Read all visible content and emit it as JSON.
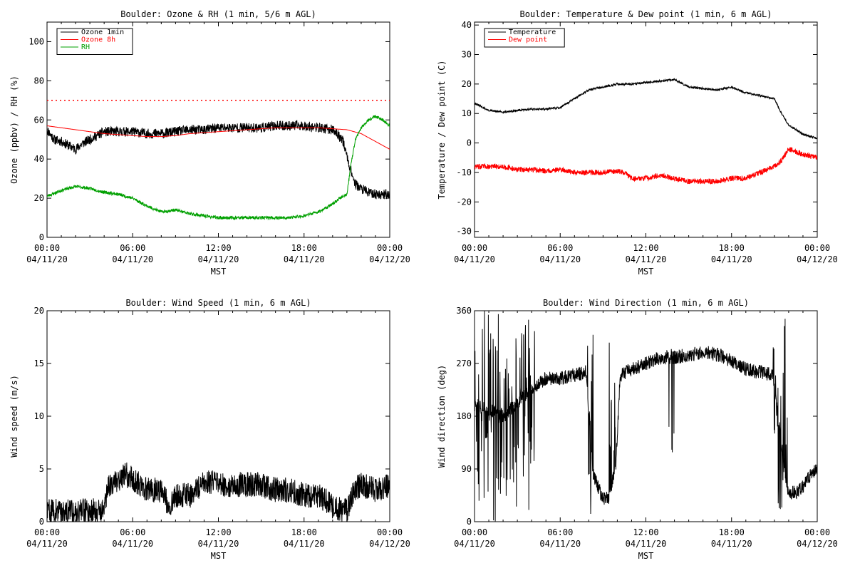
{
  "chart_data": [
    {
      "id": "ozone",
      "type": "line",
      "title": "Boulder: Ozone & RH (1 min, 5/6 m AGL)",
      "ylabel": "Ozone (ppbv) / RH (%)",
      "xlabel": "MST",
      "xlim": [
        0,
        24
      ],
      "ylim": [
        0,
        110
      ],
      "yticks": [
        0,
        20,
        40,
        60,
        80,
        100
      ],
      "xticks": [
        {
          "x": 0,
          "time": "00:00",
          "date": "04/11/20"
        },
        {
          "x": 6,
          "time": "06:00",
          "date": "04/11/20"
        },
        {
          "x": 12,
          "time": "12:00",
          "date": "04/11/20"
        },
        {
          "x": 18,
          "time": "18:00",
          "date": "04/11/20"
        },
        {
          "x": 24,
          "time": "00:00",
          "date": "04/12/20"
        }
      ],
      "reference_line": {
        "y": 70,
        "color": "#ff0000",
        "style": "dotted"
      },
      "legend": {
        "placement": "top-left"
      },
      "series": [
        {
          "name": "Ozone 1min",
          "color": "#000000",
          "noise": 2.5,
          "seed": 11,
          "points": [
            [
              0,
              55
            ],
            [
              0.5,
              50
            ],
            [
              1,
              49
            ],
            [
              1.5,
              47
            ],
            [
              2,
              45
            ],
            [
              2.5,
              48
            ],
            [
              3,
              50
            ],
            [
              3.5,
              52
            ],
            [
              4,
              54
            ],
            [
              5,
              54
            ],
            [
              6,
              54
            ],
            [
              7,
              53
            ],
            [
              8,
              53
            ],
            [
              9,
              54
            ],
            [
              10,
              55
            ],
            [
              11,
              55
            ],
            [
              12,
              56
            ],
            [
              13,
              56
            ],
            [
              14,
              56
            ],
            [
              15,
              56
            ],
            [
              16,
              57
            ],
            [
              17,
              57
            ],
            [
              18,
              57
            ],
            [
              19,
              56
            ],
            [
              20,
              55
            ],
            [
              20.7,
              50
            ],
            [
              21.2,
              36
            ],
            [
              21.6,
              27
            ],
            [
              22,
              25
            ],
            [
              22.5,
              23
            ],
            [
              23,
              22
            ],
            [
              24,
              22
            ]
          ]
        },
        {
          "name": "Ozone 8h",
          "color": "#ff0000",
          "noise": 0,
          "seed": 1,
          "points": [
            [
              0,
              57
            ],
            [
              1,
              56
            ],
            [
              2,
              55
            ],
            [
              3,
              54
            ],
            [
              4,
              53
            ],
            [
              5,
              52.5
            ],
            [
              6,
              52
            ],
            [
              7,
              51.5
            ],
            [
              8,
              51.5
            ],
            [
              9,
              52
            ],
            [
              10,
              53
            ],
            [
              11,
              53.5
            ],
            [
              12,
              54
            ],
            [
              13,
              54.5
            ],
            [
              14,
              55
            ],
            [
              15,
              55.5
            ],
            [
              16,
              56
            ],
            [
              17,
              56
            ],
            [
              18,
              56
            ],
            [
              19,
              56
            ],
            [
              20,
              55.5
            ],
            [
              21,
              55
            ],
            [
              22,
              53
            ],
            [
              23,
              49
            ],
            [
              24,
              45
            ]
          ]
        },
        {
          "name": "RH",
          "color": "#00a000",
          "noise": 0.8,
          "seed": 23,
          "points": [
            [
              0,
              21
            ],
            [
              1,
              24
            ],
            [
              2,
              26
            ],
            [
              3,
              25
            ],
            [
              4,
              23
            ],
            [
              5,
              22
            ],
            [
              6,
              20
            ],
            [
              7,
              16
            ],
            [
              8,
              13
            ],
            [
              9,
              14
            ],
            [
              10,
              12
            ],
            [
              11,
              11
            ],
            [
              12,
              10
            ],
            [
              13,
              10
            ],
            [
              14,
              10
            ],
            [
              15,
              10
            ],
            [
              16,
              10
            ],
            [
              17,
              10
            ],
            [
              18,
              11
            ],
            [
              19,
              13
            ],
            [
              20,
              17
            ],
            [
              20.5,
              20
            ],
            [
              21,
              22
            ],
            [
              21.3,
              38
            ],
            [
              21.6,
              50
            ],
            [
              22,
              56
            ],
            [
              22.5,
              60
            ],
            [
              23,
              62
            ],
            [
              23.5,
              60
            ],
            [
              24,
              57
            ]
          ]
        }
      ]
    },
    {
      "id": "temp",
      "type": "line",
      "title": "Boulder: Temperature & Dew point (1 min, 6 m AGL)",
      "ylabel": "Temperature / Dew point (C)",
      "xlabel": "MST",
      "xlim": [
        0,
        24
      ],
      "ylim": [
        -32,
        41
      ],
      "yticks": [
        -30,
        -20,
        -10,
        0,
        10,
        20,
        30,
        40
      ],
      "xticks": [
        {
          "x": 0,
          "time": "00:00",
          "date": "04/11/20"
        },
        {
          "x": 6,
          "time": "06:00",
          "date": "04/11/20"
        },
        {
          "x": 12,
          "time": "12:00",
          "date": "04/11/20"
        },
        {
          "x": 18,
          "time": "18:00",
          "date": "04/11/20"
        },
        {
          "x": 24,
          "time": "00:00",
          "date": "04/12/20"
        }
      ],
      "legend": {
        "placement": "top-left"
      },
      "series": [
        {
          "name": "Temperature",
          "color": "#000000",
          "noise": 0.35,
          "seed": 31,
          "points": [
            [
              0,
              13.5
            ],
            [
              1,
              11
            ],
            [
              2,
              10.5
            ],
            [
              3,
              11
            ],
            [
              4,
              11.5
            ],
            [
              5,
              11.5
            ],
            [
              6,
              12
            ],
            [
              7,
              15
            ],
            [
              8,
              18
            ],
            [
              9,
              19
            ],
            [
              10,
              20
            ],
            [
              11,
              20
            ],
            [
              12,
              20.5
            ],
            [
              13,
              21
            ],
            [
              14,
              21.5
            ],
            [
              15,
              19
            ],
            [
              16,
              18.5
            ],
            [
              17,
              18
            ],
            [
              18,
              19
            ],
            [
              19,
              17
            ],
            [
              20,
              16
            ],
            [
              21,
              15
            ],
            [
              21.5,
              10
            ],
            [
              22,
              6
            ],
            [
              23,
              3
            ],
            [
              24,
              1.5
            ]
          ]
        },
        {
          "name": "Dew point",
          "color": "#ff0000",
          "noise": 0.9,
          "seed": 47,
          "points": [
            [
              0,
              -8
            ],
            [
              1,
              -8
            ],
            [
              2,
              -8
            ],
            [
              3,
              -9
            ],
            [
              4,
              -9
            ],
            [
              5,
              -9.5
            ],
            [
              6,
              -9
            ],
            [
              7,
              -10
            ],
            [
              8,
              -10
            ],
            [
              9,
              -10
            ],
            [
              10,
              -9.5
            ],
            [
              10.5,
              -10
            ],
            [
              11,
              -12
            ],
            [
              12,
              -12
            ],
            [
              13,
              -11
            ],
            [
              14,
              -12
            ],
            [
              15,
              -13
            ],
            [
              16,
              -13
            ],
            [
              17,
              -13
            ],
            [
              18,
              -12
            ],
            [
              19,
              -12
            ],
            [
              20,
              -10
            ],
            [
              21,
              -8
            ],
            [
              21.5,
              -6
            ],
            [
              22,
              -2
            ],
            [
              23,
              -4
            ],
            [
              24,
              -5
            ]
          ]
        }
      ]
    },
    {
      "id": "windspeed",
      "type": "line",
      "title": "Boulder: Wind Speed (1 min, 6 m AGL)",
      "ylabel": "Wind speed (m/s)",
      "xlabel": "MST",
      "xlim": [
        0,
        24
      ],
      "ylim": [
        0,
        20
      ],
      "yticks": [
        0,
        5,
        10,
        15,
        20
      ],
      "xticks": [
        {
          "x": 0,
          "time": "00:00",
          "date": "04/11/20"
        },
        {
          "x": 6,
          "time": "06:00",
          "date": "04/11/20"
        },
        {
          "x": 12,
          "time": "12:00",
          "date": "04/11/20"
        },
        {
          "x": 18,
          "time": "18:00",
          "date": "04/11/20"
        },
        {
          "x": 24,
          "time": "00:00",
          "date": "04/12/20"
        }
      ],
      "series": [
        {
          "name": "",
          "color": "#000000",
          "noise": 1.2,
          "seed": 59,
          "min": 0,
          "points": [
            [
              0,
              1
            ],
            [
              1,
              1
            ],
            [
              2,
              1
            ],
            [
              3,
              1
            ],
            [
              4,
              1.2
            ],
            [
              4.3,
              3.5
            ],
            [
              5,
              4
            ],
            [
              5.5,
              4.5
            ],
            [
              6,
              4
            ],
            [
              7,
              3
            ],
            [
              8,
              3
            ],
            [
              8.5,
              1.5
            ],
            [
              9,
              2.5
            ],
            [
              10,
              2.5
            ],
            [
              10.5,
              3
            ],
            [
              11,
              4
            ],
            [
              12,
              3.5
            ],
            [
              13,
              3.5
            ],
            [
              14,
              3.5
            ],
            [
              15,
              3.5
            ],
            [
              16,
              3
            ],
            [
              17,
              3
            ],
            [
              18,
              2.5
            ],
            [
              19,
              2.5
            ],
            [
              20,
              1.5
            ],
            [
              21,
              1
            ],
            [
              21.5,
              3
            ],
            [
              22,
              3.5
            ],
            [
              23,
              3
            ],
            [
              24,
              3.5
            ]
          ]
        }
      ]
    },
    {
      "id": "winddir",
      "type": "line",
      "title": "Boulder: Wind Direction (1 min, 6 m AGL)",
      "ylabel": "Wind direction (deg)",
      "xlabel": "MST",
      "xlim": [
        0,
        24
      ],
      "ylim": [
        0,
        360
      ],
      "yticks": [
        0,
        90,
        180,
        270,
        360
      ],
      "xticks": [
        {
          "x": 0,
          "time": "00:00",
          "date": "04/11/20"
        },
        {
          "x": 6,
          "time": "06:00",
          "date": "04/11/20"
        },
        {
          "x": 12,
          "time": "12:00",
          "date": "04/11/20"
        },
        {
          "x": 18,
          "time": "18:00",
          "date": "04/11/20"
        },
        {
          "x": 24,
          "time": "00:00",
          "date": "04/12/20"
        }
      ],
      "series": [
        {
          "name": "",
          "color": "#000000",
          "noise": 12,
          "seed": 73,
          "min": 0,
          "max": 360,
          "erratic": [
            [
              0,
              4.2
            ],
            [
              7.8,
              8.3
            ],
            [
              9.4,
              9.9
            ],
            [
              13.5,
              14.0
            ],
            [
              20.9,
              21.9
            ]
          ],
          "points": [
            [
              0,
              200
            ],
            [
              2,
              180
            ],
            [
              4.2,
              230
            ],
            [
              5,
              245
            ],
            [
              6,
              245
            ],
            [
              7,
              250
            ],
            [
              7.8,
              255
            ],
            [
              8.3,
              80
            ],
            [
              9,
              40
            ],
            [
              9.4,
              40
            ],
            [
              9.9,
              100
            ],
            [
              10.2,
              250
            ],
            [
              11,
              260
            ],
            [
              12,
              270
            ],
            [
              13,
              280
            ],
            [
              14,
              280
            ],
            [
              15,
              285
            ],
            [
              16,
              290
            ],
            [
              17,
              285
            ],
            [
              18,
              275
            ],
            [
              19,
              260
            ],
            [
              20,
              255
            ],
            [
              20.9,
              250
            ],
            [
              21.9,
              50
            ],
            [
              22.5,
              50
            ],
            [
              23,
              60
            ],
            [
              23.5,
              80
            ],
            [
              24,
              90
            ]
          ]
        }
      ]
    }
  ]
}
